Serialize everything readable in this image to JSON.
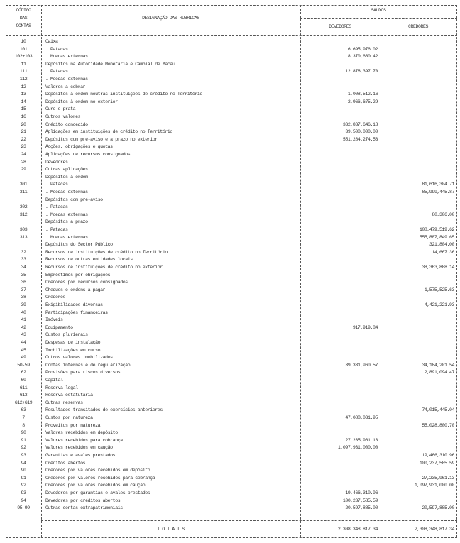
{
  "header": {
    "code_col": [
      "CÓDIGO",
      "DAS",
      "CONTAS"
    ],
    "designation_col": "DESIGNAÇÃO DAS RUBRICAS",
    "balances": "SALDOS",
    "debit": "DEVEDORES",
    "credit": "CREDORES"
  },
  "rows": [
    [
      "10",
      "Caixa",
      "",
      ""
    ],
    [
      "101",
      ".  Patacas",
      "6,695,976.02",
      ""
    ],
    [
      "102+103",
      ".  Moedas externas",
      "8,370,680.42",
      ""
    ],
    [
      "11",
      "Depósitos na Autoridade Monetária e Cambial de Macau",
      "",
      ""
    ],
    [
      "111",
      ".  Patacas",
      "12,878,397.70",
      ""
    ],
    [
      "112",
      ".  Moedas externas",
      "",
      ""
    ],
    [
      "12",
      "Valores a cobrar",
      "",
      ""
    ],
    [
      "13",
      "Depósitos à ordem noutras instituições de crédito no Território",
      "1,008,512.16",
      ""
    ],
    [
      "14",
      "Depósitos à ordem no exterior",
      "2,966,675.29",
      ""
    ],
    [
      "15",
      "Ouro e prata",
      "",
      ""
    ],
    [
      "16",
      "Outros valores",
      "",
      ""
    ],
    [
      "20",
      "Crédito concedido",
      "332,837,646.18",
      ""
    ],
    [
      "21",
      "Aplicações em instituições de crédito no Território",
      "39,500,000.00",
      ""
    ],
    [
      "22",
      "Depósitos com pré-aviso e a prazo no exterior",
      "551,284,274.53",
      ""
    ],
    [
      "23",
      "Acções, obrigações e quotas",
      "",
      ""
    ],
    [
      "24",
      "Aplicações de recursos consignados",
      "",
      ""
    ],
    [
      "28",
      "Devedores",
      "",
      ""
    ],
    [
      "29",
      "Outras aplicações",
      "",
      ""
    ],
    [
      "",
      "Depósitos à ordem",
      "",
      ""
    ],
    [
      "301",
      ".  Patacas",
      "",
      "81,616,304.71"
    ],
    [
      "311",
      ".  Moedas externas",
      "",
      "85,999,445.87"
    ],
    [
      "",
      "Depósitos com pré-aviso",
      "",
      ""
    ],
    [
      "302",
      ".  Patacas",
      "",
      ""
    ],
    [
      "312",
      ".  Moedas externas",
      "",
      "80,306.00"
    ],
    [
      "",
      "Depósitos a prazo",
      "",
      ""
    ],
    [
      "303",
      ".  Patacas",
      "",
      "108,479,519.62"
    ],
    [
      "313",
      ".  Moedas externas",
      "",
      "555,887,849.65"
    ],
    [
      "",
      "Depósitos do Sector Público",
      "",
      "321,804.00"
    ],
    [
      "32",
      "Recursos de instituições de crédito no Território",
      "",
      "14,667.36"
    ],
    [
      "33",
      "Recursos de outras entidades locais",
      "",
      ""
    ],
    [
      "34",
      "Recursos de instituições de crédito no exterior",
      "",
      "38,363,888.14"
    ],
    [
      "35",
      "Empréstimos por obrigações",
      "",
      ""
    ],
    [
      "36",
      "Credores por recursos consignados",
      "",
      ""
    ],
    [
      "37",
      "Cheques e ordens a pagar",
      "",
      "1,575,525.63"
    ],
    [
      "38",
      "Credores",
      "",
      ""
    ],
    [
      "39",
      "Exigibilidades diversas",
      "",
      "4,421,221.93"
    ],
    [
      "40",
      "Participações financeiras",
      "",
      ""
    ],
    [
      "41",
      "Imóveis",
      "",
      ""
    ],
    [
      "42",
      "Equipamento",
      "917,919.84",
      ""
    ],
    [
      "43",
      "Custos plurienais",
      "",
      ""
    ],
    [
      "44",
      "Despesas de instalação",
      "",
      ""
    ],
    [
      "45",
      "Imobilizações em curso",
      "",
      ""
    ],
    [
      "49",
      "Outros valores imobilizados",
      "",
      ""
    ],
    [
      "50-59",
      "Contas internas e de regularização",
      "39,331,960.57",
      "34,184,201.54"
    ],
    [
      "62",
      "Provisões para riscos diversos",
      "",
      "2,891,094.47"
    ],
    [
      "60",
      "Capital",
      "",
      ""
    ],
    [
      "611",
      "Reserva legal",
      "",
      ""
    ],
    [
      "613",
      "Reserva estatutária",
      "",
      ""
    ],
    [
      "612+619",
      "Outras reservas",
      "",
      ""
    ],
    [
      "63",
      "Resultados transitados de exercícios anteriores",
      "",
      "74,015,445.04"
    ],
    [
      "7",
      "Custos por natureza",
      "47,088,031.95",
      ""
    ],
    [
      "8",
      "Proveitos por natureza",
      "",
      "55,028,800.70"
    ],
    [
      "90",
      "Valores recebidos em depósito",
      "",
      ""
    ],
    [
      "91",
      "Valores recebidos para cobrança",
      "27,235,961.13",
      ""
    ],
    [
      "92",
      "Valores recebidos em caução",
      "1,097,931,000.00",
      ""
    ],
    [
      "93",
      "Garantias e avales prestados",
      "",
      "19,466,310.96"
    ],
    [
      "94",
      "Créditos abertos",
      "",
      "100,237,585.59"
    ],
    [
      "90",
      "Credores por valores recebidos em depósito",
      "",
      ""
    ],
    [
      "91",
      "Credores por valores recebidos para cobrança",
      "",
      "27,235,961.13"
    ],
    [
      "92",
      "Credores por valores recebidos em caução",
      "",
      "1,097,931,000.00"
    ],
    [
      "93",
      "Devedores por garantias e avales prestados",
      "19,466,310.96",
      ""
    ],
    [
      "94",
      "Devedores por créditos abertos",
      "100,237,585.59",
      ""
    ],
    [
      "95-99",
      "Outras contas extrapatrimoniais",
      "20,597,885.00",
      "20,597,885.00"
    ]
  ],
  "totals": {
    "label": "T O T A I S",
    "debit": "2,308,348,817.34",
    "credit": "2,308,348,817.34"
  }
}
